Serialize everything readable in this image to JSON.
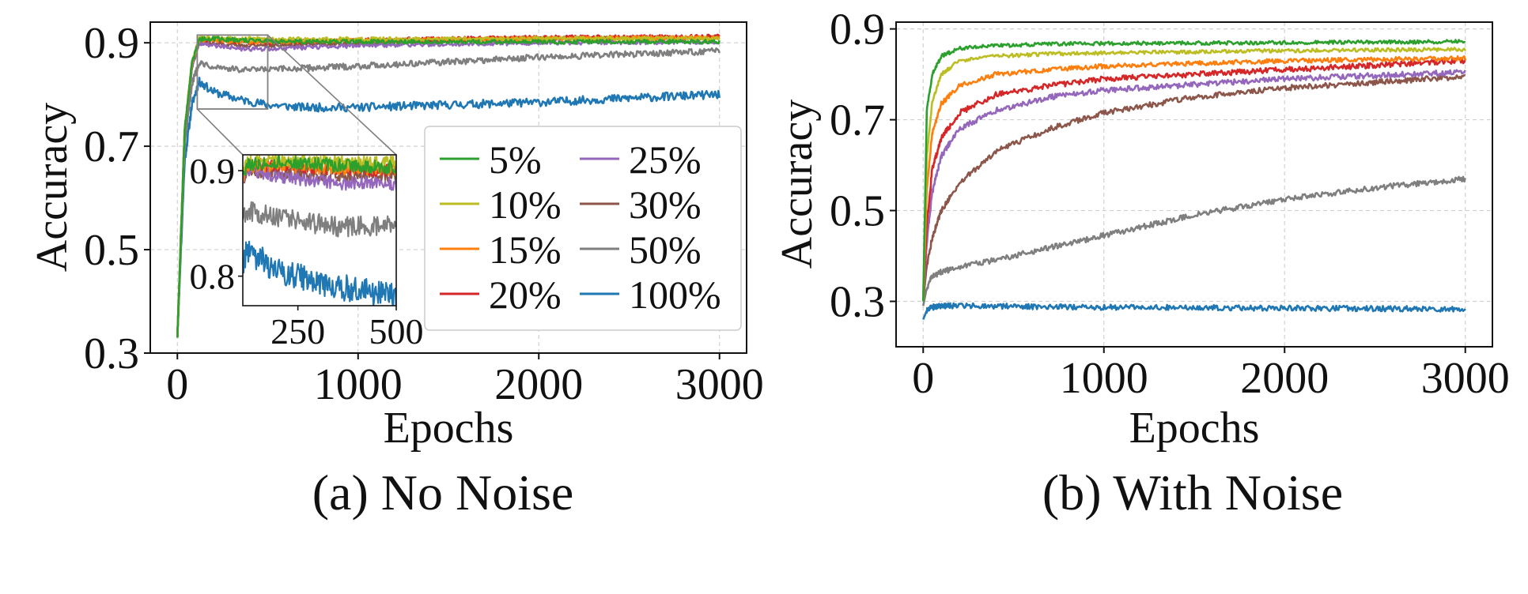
{
  "colors": {
    "5%": "#2ca02c",
    "10%": "#bcbd22",
    "15%": "#ff7f0e",
    "20%": "#d62728",
    "25%": "#9467bd",
    "30%": "#8c564b",
    "50%": "#7f7f7f",
    "100%": "#1f77b4",
    "grid": "#d0d0d0",
    "frame": "#111111",
    "inset_box": "#808080"
  },
  "chart_data": [
    {
      "type": "line",
      "caption": "(a) No Noise",
      "xlabel": "Epochs",
      "ylabel": "Accuracy",
      "xlim": [
        -150,
        3150
      ],
      "ylim": [
        0.3,
        0.94
      ],
      "xticks": [
        0,
        1000,
        2000,
        3000
      ],
      "xtick_labels": [
        "0",
        "1000",
        "2000",
        "3000"
      ],
      "yticks": [
        0.3,
        0.5,
        0.7,
        0.9
      ],
      "ytick_labels": [
        "0.3",
        "0.5",
        "0.7",
        "0.9"
      ],
      "grid": true,
      "legend": {
        "placement": "lower-right",
        "columns": 2,
        "entries": [
          "5%",
          "10%",
          "15%",
          "20%",
          "25%",
          "30%",
          "50%",
          "100%"
        ]
      },
      "series": [
        {
          "name": "5%",
          "color_key": "5%",
          "x": [
            0,
            40,
            80,
            120,
            200,
            350,
            500,
            1000,
            2000,
            3000
          ],
          "y": [
            0.33,
            0.73,
            0.86,
            0.906,
            0.908,
            0.905,
            0.903,
            0.902,
            0.902,
            0.902
          ]
        },
        {
          "name": "10%",
          "color_key": "10%",
          "x": [
            0,
            40,
            80,
            120,
            200,
            350,
            500,
            1000,
            2000,
            3000
          ],
          "y": [
            0.33,
            0.73,
            0.86,
            0.908,
            0.91,
            0.908,
            0.907,
            0.907,
            0.908,
            0.908
          ]
        },
        {
          "name": "15%",
          "color_key": "15%",
          "x": [
            0,
            40,
            80,
            120,
            200,
            350,
            500,
            1000,
            2000,
            3000
          ],
          "y": [
            0.33,
            0.73,
            0.86,
            0.905,
            0.905,
            0.902,
            0.902,
            0.905,
            0.908,
            0.91
          ]
        },
        {
          "name": "20%",
          "color_key": "20%",
          "x": [
            0,
            40,
            80,
            120,
            200,
            350,
            500,
            1000,
            2000,
            3000
          ],
          "y": [
            0.33,
            0.73,
            0.86,
            0.905,
            0.906,
            0.902,
            0.9,
            0.905,
            0.91,
            0.912
          ]
        },
        {
          "name": "25%",
          "color_key": "25%",
          "x": [
            0,
            40,
            80,
            120,
            200,
            350,
            500,
            1000,
            2000,
            3000
          ],
          "y": [
            0.33,
            0.72,
            0.85,
            0.9,
            0.895,
            0.888,
            0.888,
            0.895,
            0.9,
            0.902
          ]
        },
        {
          "name": "30%",
          "color_key": "30%",
          "x": [
            0,
            40,
            80,
            120,
            200,
            350,
            500,
            1000,
            2000,
            3000
          ],
          "y": [
            0.33,
            0.72,
            0.85,
            0.9,
            0.898,
            0.895,
            0.895,
            0.9,
            0.908,
            0.91
          ]
        },
        {
          "name": "50%",
          "color_key": "50%",
          "x": [
            0,
            40,
            80,
            120,
            200,
            350,
            500,
            1000,
            1500,
            2000,
            2500,
            3000
          ],
          "y": [
            0.33,
            0.7,
            0.82,
            0.862,
            0.855,
            0.847,
            0.848,
            0.855,
            0.863,
            0.872,
            0.878,
            0.884
          ]
        },
        {
          "name": "100%",
          "color_key": "100%",
          "x": [
            0,
            40,
            80,
            120,
            200,
            350,
            500,
            700,
            1000,
            1500,
            2000,
            2500,
            3000
          ],
          "y": [
            0.33,
            0.67,
            0.78,
            0.825,
            0.805,
            0.79,
            0.78,
            0.775,
            0.775,
            0.78,
            0.785,
            0.793,
            0.8
          ]
        }
      ],
      "inset": {
        "xlim": [
          110,
          500
        ],
        "ylim": [
          0.772,
          0.915
        ],
        "xticks": [
          250,
          500
        ],
        "xtick_labels": [
          "250",
          "500"
        ],
        "yticks": [
          0.8,
          0.9
        ],
        "ytick_labels": [
          "0.8",
          "0.9"
        ]
      }
    },
    {
      "type": "line",
      "caption": "(b) With Noise",
      "xlabel": "Epochs",
      "ylabel": "Accuracy",
      "xlim": [
        -150,
        3150
      ],
      "ylim": [
        0.2,
        0.915
      ],
      "xticks": [
        0,
        1000,
        2000,
        3000
      ],
      "xtick_labels": [
        "0",
        "1000",
        "2000",
        "3000"
      ],
      "yticks": [
        0.3,
        0.5,
        0.7,
        0.9
      ],
      "ytick_labels": [
        "0.3",
        "0.5",
        "0.7",
        "0.9"
      ],
      "grid": true,
      "series": [
        {
          "name": "5%",
          "color_key": "5%",
          "x": [
            0,
            20,
            50,
            100,
            200,
            400,
            700,
            1000,
            2000,
            3000
          ],
          "y": [
            0.3,
            0.72,
            0.8,
            0.84,
            0.857,
            0.863,
            0.867,
            0.868,
            0.87,
            0.872
          ]
        },
        {
          "name": "10%",
          "color_key": "10%",
          "x": [
            0,
            20,
            50,
            100,
            200,
            400,
            700,
            1000,
            2000,
            3000
          ],
          "y": [
            0.3,
            0.62,
            0.74,
            0.8,
            0.83,
            0.84,
            0.845,
            0.847,
            0.852,
            0.855
          ]
        },
        {
          "name": "15%",
          "color_key": "15%",
          "x": [
            0,
            20,
            50,
            100,
            200,
            400,
            700,
            1000,
            2000,
            3000
          ],
          "y": [
            0.3,
            0.55,
            0.67,
            0.735,
            0.775,
            0.8,
            0.81,
            0.818,
            0.83,
            0.835
          ]
        },
        {
          "name": "20%",
          "color_key": "20%",
          "x": [
            0,
            20,
            50,
            100,
            200,
            400,
            700,
            1000,
            2000,
            3000
          ],
          "y": [
            0.3,
            0.47,
            0.59,
            0.66,
            0.715,
            0.755,
            0.775,
            0.79,
            0.81,
            0.83
          ]
        },
        {
          "name": "25%",
          "color_key": "25%",
          "x": [
            0,
            20,
            50,
            100,
            200,
            400,
            700,
            1000,
            2000,
            3000
          ],
          "y": [
            0.3,
            0.43,
            0.54,
            0.62,
            0.68,
            0.72,
            0.75,
            0.765,
            0.79,
            0.805
          ]
        },
        {
          "name": "30%",
          "color_key": "30%",
          "x": [
            0,
            20,
            50,
            100,
            200,
            400,
            700,
            1000,
            1500,
            2000,
            3000
          ],
          "y": [
            0.3,
            0.38,
            0.44,
            0.5,
            0.56,
            0.63,
            0.68,
            0.715,
            0.75,
            0.77,
            0.795
          ]
        },
        {
          "name": "50%",
          "color_key": "50%",
          "x": [
            0,
            20,
            50,
            100,
            200,
            500,
            1000,
            1500,
            2000,
            2500,
            3000
          ],
          "y": [
            0.29,
            0.33,
            0.355,
            0.365,
            0.375,
            0.4,
            0.445,
            0.49,
            0.525,
            0.55,
            0.57
          ]
        },
        {
          "name": "100%",
          "color_key": "100%",
          "x": [
            0,
            20,
            50,
            100,
            300,
            1000,
            2000,
            3000
          ],
          "y": [
            0.26,
            0.28,
            0.287,
            0.29,
            0.29,
            0.287,
            0.285,
            0.283
          ]
        }
      ]
    }
  ]
}
